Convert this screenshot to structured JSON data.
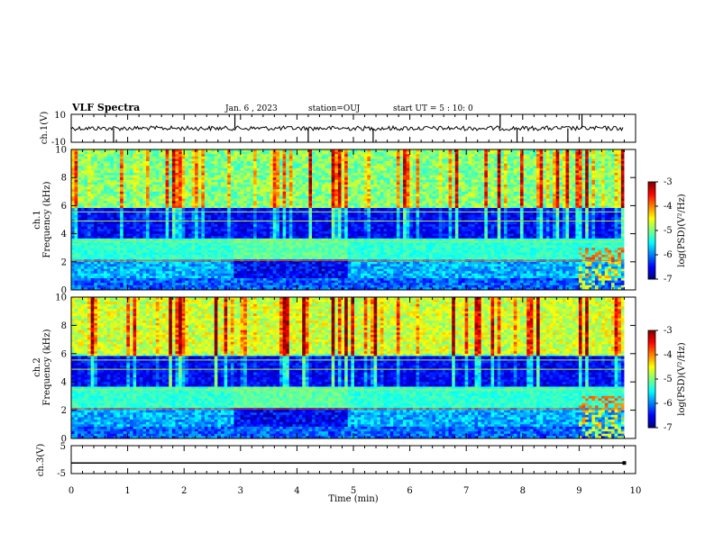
{
  "header": {
    "title": "VLF Spectra",
    "date": "Jan. 6 , 2023",
    "station": "station=OUJ",
    "start_ut": "start UT =  5 : 10: 0"
  },
  "chart_data": [
    {
      "type": "line",
      "name": "ch1-waveform",
      "ylabel": "ch.1(V)",
      "ylim": [
        -10,
        10
      ],
      "ytick_labels": [
        "10",
        "-10"
      ],
      "xlim": [
        0,
        10
      ],
      "color": "#000000",
      "baseline_level": 0,
      "data_end_x": 9.8,
      "spikes_x": [
        0.75,
        2.9,
        4.2,
        5.35,
        7.6,
        7.9,
        8.8,
        9.05
      ]
    },
    {
      "type": "heatmap",
      "name": "ch1-spectrogram",
      "ylabel": "ch.1\nFrequency  (kHz)",
      "ylim": [
        0,
        10
      ],
      "yticks": [
        0,
        2,
        4,
        6,
        8,
        10
      ],
      "xlim": [
        0,
        10
      ],
      "data_end_x": 9.8,
      "colorbar_label": "log(PSD)(V²/Hz)",
      "colorbar_range": [
        -7,
        -3
      ],
      "colorbar_ticks": [
        "-3",
        "-4",
        "-5",
        "-6",
        "-7"
      ]
    },
    {
      "type": "heatmap",
      "name": "ch2-spectrogram",
      "ylabel": "ch.2\nFrequency  (kHz)",
      "ylim": [
        0,
        10
      ],
      "yticks": [
        0,
        2,
        4,
        6,
        8,
        10
      ],
      "xlim": [
        0,
        10
      ],
      "data_end_x": 9.8,
      "colorbar_label": "log(PSD)(V²/Hz)",
      "colorbar_range": [
        -7,
        -3
      ],
      "colorbar_ticks": [
        "-3",
        "-4",
        "-5",
        "-6",
        "-7"
      ]
    },
    {
      "type": "line",
      "name": "ch3-waveform",
      "ylabel": "ch.3(V)",
      "ylim": [
        -5,
        5
      ],
      "ytick_labels": [
        "5",
        "-5"
      ],
      "xlim": [
        0,
        10
      ],
      "color": "#000000",
      "baseline_level": -1.2,
      "data_end_x": 9.8
    }
  ],
  "xaxis": {
    "label": "Time  (min)",
    "ticks": [
      0,
      1,
      2,
      3,
      4,
      5,
      6,
      7,
      8,
      9,
      10
    ]
  }
}
